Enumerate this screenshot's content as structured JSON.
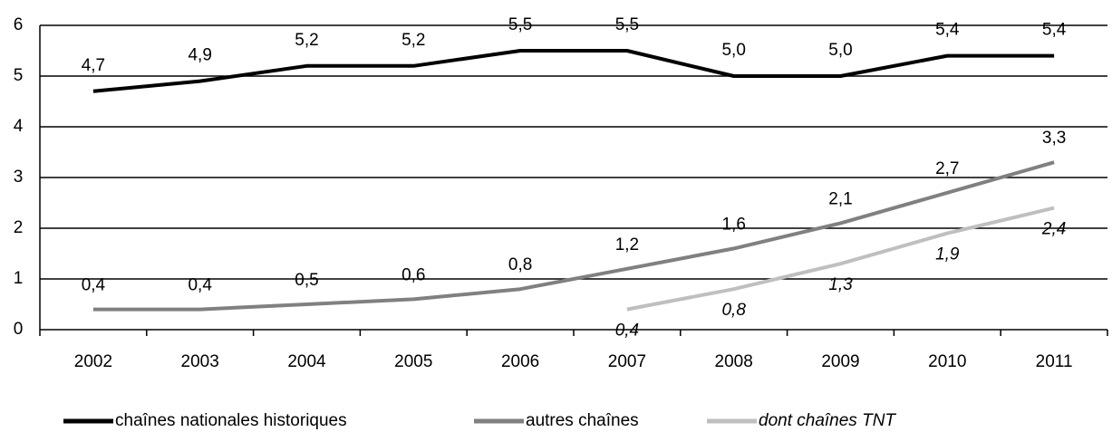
{
  "chart_data": {
    "type": "line",
    "categories": [
      "2002",
      "2003",
      "2004",
      "2005",
      "2006",
      "2007",
      "2008",
      "2009",
      "2010",
      "2011"
    ],
    "series": [
      {
        "name": "chaînes nationales historiques",
        "color": "#000000",
        "font_style": "normal",
        "values": [
          4.7,
          4.9,
          5.2,
          5.2,
          5.5,
          5.5,
          5.0,
          5.0,
          5.4,
          5.4
        ],
        "value_labels": [
          "4,7",
          "4,9",
          "5,2",
          "5,2",
          "5,5",
          "5,5",
          "5,0",
          "5,0",
          "5,4",
          "5,4"
        ]
      },
      {
        "name": "autres chaînes",
        "color": "#808080",
        "font_style": "normal",
        "values": [
          0.4,
          0.4,
          0.5,
          0.6,
          0.8,
          1.2,
          1.6,
          2.1,
          2.7,
          3.3
        ],
        "value_labels": [
          "0,4",
          "0,4",
          "0,5",
          "0,6",
          "0,8",
          "1,2",
          "1,6",
          "2,1",
          "2,7",
          "3,3"
        ]
      },
      {
        "name": "dont chaînes TNT",
        "color": "#bfbfbf",
        "font_style": "italic",
        "values": [
          null,
          null,
          null,
          null,
          null,
          0.4,
          0.8,
          1.3,
          1.9,
          2.4
        ],
        "value_labels": [
          null,
          null,
          null,
          null,
          null,
          "0,4",
          "0,8",
          "1,3",
          "1,9",
          "2,4"
        ]
      }
    ],
    "ylim": [
      0,
      6
    ],
    "yticks": [
      0,
      1,
      2,
      3,
      4,
      5,
      6
    ],
    "grid": true,
    "legend": "bottom"
  }
}
